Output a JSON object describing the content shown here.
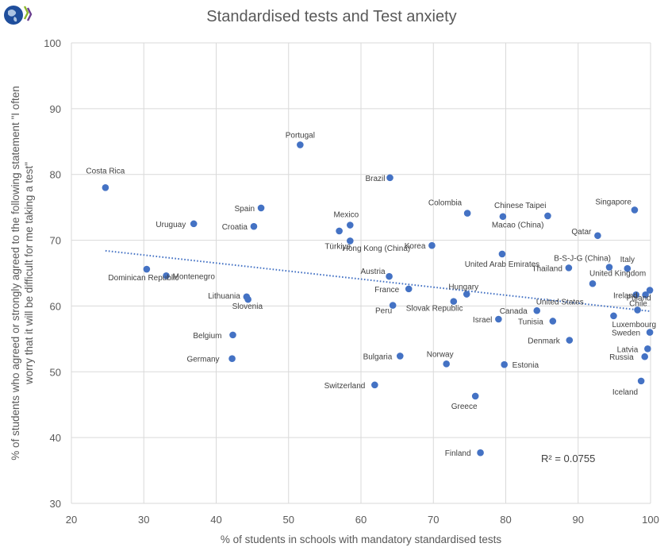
{
  "logo": {
    "name": "oecd-logo",
    "globe_color": "#1f4e9c",
    "chevron_colors": [
      "#8cb82b",
      "#6b3f8f"
    ]
  },
  "chart_data": {
    "type": "scatter",
    "title": "Standardised tests and Test anxiety",
    "xlabel": "% of students in schools with mandatory standardised tests",
    "ylabel_lines": [
      "% of students who agreed or strongly agreed to the following statement \"I often",
      "worry that it will be difficult for me taking a test\""
    ],
    "xlim": [
      20,
      100
    ],
    "ylim": [
      30,
      100
    ],
    "xticks": [
      20,
      30,
      40,
      50,
      60,
      70,
      80,
      90,
      100
    ],
    "yticks": [
      30,
      40,
      50,
      60,
      70,
      80,
      90,
      100
    ],
    "grid": true,
    "marker_color": "#4472c4",
    "trendline": {
      "type": "linear",
      "style": "dotted",
      "color": "#4472c4",
      "x_range": [
        24.7,
        100
      ],
      "y_start": 68.4,
      "y_end": 59.2,
      "r_squared_label": "R² = 0.0755"
    },
    "points": [
      {
        "label": "Costa Rica",
        "x": 24.7,
        "y": 78.0
      },
      {
        "label": "Portugal",
        "x": 51.6,
        "y": 84.5
      },
      {
        "label": "Brazil",
        "x": 64.0,
        "y": 79.5
      },
      {
        "label": "Spain",
        "x": 46.2,
        "y": 74.9
      },
      {
        "label": "Uruguay",
        "x": 36.9,
        "y": 72.5
      },
      {
        "label": "Croatia",
        "x": 45.2,
        "y": 72.1
      },
      {
        "label": "Mexico",
        "x": 58.5,
        "y": 72.3
      },
      {
        "label": "Hong Kong (China)",
        "x": 57.0,
        "y": 71.4
      },
      {
        "label": "Türkiye",
        "x": 58.5,
        "y": 69.9
      },
      {
        "label": "Colombia",
        "x": 74.7,
        "y": 74.1
      },
      {
        "label": "Macao (China)",
        "x": 79.6,
        "y": 73.6
      },
      {
        "label": "Chinese Taipei",
        "x": 85.8,
        "y": 73.7
      },
      {
        "label": "Singapore",
        "x": 97.8,
        "y": 74.6
      },
      {
        "label": "Qatar",
        "x": 92.7,
        "y": 70.7
      },
      {
        "label": "Korea",
        "x": 69.8,
        "y": 69.2
      },
      {
        "label": "United Arab Emirates",
        "x": 79.5,
        "y": 67.9
      },
      {
        "label": "Thailand",
        "x": 88.7,
        "y": 65.8
      },
      {
        "label": "B-S-J-G (China)",
        "x": 94.3,
        "y": 65.9
      },
      {
        "label": "Italy",
        "x": 96.8,
        "y": 65.7
      },
      {
        "label": "United Kingdom",
        "x": 92.0,
        "y": 63.4
      },
      {
        "label": "United States",
        "x": 98.0,
        "y": 61.7
      },
      {
        "label": "Ireland",
        "x": 99.3,
        "y": 61.7
      },
      {
        "label": "Poland",
        "x": 98.2,
        "y": 59.4
      },
      {
        "label": "Chile",
        "x": 99.9,
        "y": 62.4
      },
      {
        "label": "Luxembourg",
        "x": 94.9,
        "y": 58.5
      },
      {
        "label": "Dominican Republic",
        "x": 30.4,
        "y": 65.6
      },
      {
        "label": "Montenegro",
        "x": 33.1,
        "y": 64.6
      },
      {
        "label": "Austria",
        "x": 63.9,
        "y": 64.5
      },
      {
        "label": "France",
        "x": 66.6,
        "y": 62.6
      },
      {
        "label": "Hungary",
        "x": 74.6,
        "y": 61.8
      },
      {
        "label": "Peru",
        "x": 64.4,
        "y": 60.1
      },
      {
        "label": "Slovak Republic",
        "x": 72.8,
        "y": 60.7
      },
      {
        "label": "Canada",
        "x": 84.3,
        "y": 59.3
      },
      {
        "label": "Israel",
        "x": 79.0,
        "y": 58.0
      },
      {
        "label": "Tunisia",
        "x": 86.5,
        "y": 57.7
      },
      {
        "label": "Lithuania",
        "x": 44.2,
        "y": 61.4
      },
      {
        "label": "Slovenia",
        "x": 44.4,
        "y": 61.0
      },
      {
        "label": "Belgium",
        "x": 42.3,
        "y": 55.6
      },
      {
        "label": "Germany",
        "x": 42.2,
        "y": 52.0
      },
      {
        "label": "Denmark",
        "x": 88.8,
        "y": 54.8
      },
      {
        "label": "Sweden",
        "x": 99.9,
        "y": 56.0
      },
      {
        "label": "Latvia",
        "x": 99.6,
        "y": 53.5
      },
      {
        "label": "Russia",
        "x": 99.2,
        "y": 52.3
      },
      {
        "label": "Iceland",
        "x": 98.7,
        "y": 48.6
      },
      {
        "label": "Bulgaria",
        "x": 65.4,
        "y": 52.4
      },
      {
        "label": "Norway",
        "x": 71.8,
        "y": 51.2
      },
      {
        "label": "Estonia",
        "x": 79.8,
        "y": 51.1
      },
      {
        "label": "Switzerland",
        "x": 61.9,
        "y": 48.0
      },
      {
        "label": "Greece",
        "x": 75.8,
        "y": 46.3
      },
      {
        "label": "Finland",
        "x": 76.5,
        "y": 37.7
      }
    ]
  }
}
